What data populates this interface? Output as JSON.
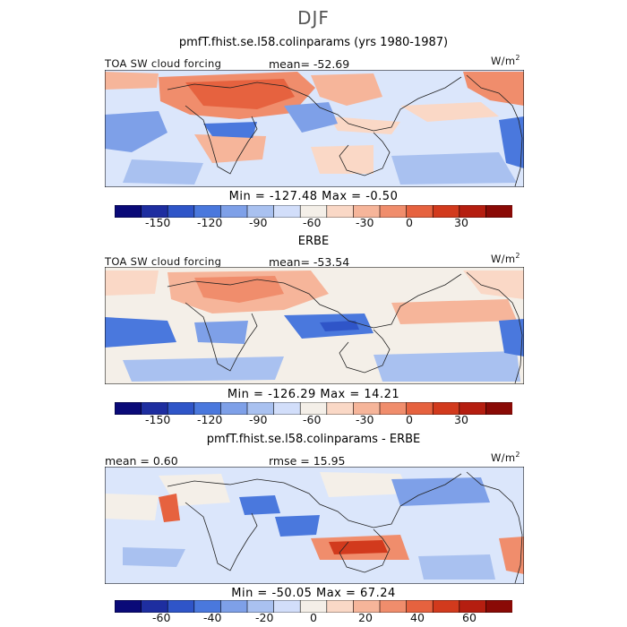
{
  "title": "DJF",
  "panels": [
    {
      "header": "pmfT.fhist.se.l58.colinparams (yrs 1980-1987)",
      "left_label": "TOA SW cloud forcing",
      "center_label": "mean=  -52.69",
      "units": "W/m",
      "units_sup": "2",
      "minmax": "Min = -127.48  Max =   -0.50",
      "colorbar_ticks": [
        "-150",
        "-120",
        "-90",
        "-60",
        "-30",
        "0",
        "30"
      ]
    },
    {
      "header": "ERBE",
      "left_label": "TOA SW cloud forcing",
      "center_label": "mean=  -53.54",
      "units": "W/m",
      "units_sup": "2",
      "minmax": "Min = -126.29  Max =   14.21",
      "colorbar_ticks": [
        "-150",
        "-120",
        "-90",
        "-60",
        "-30",
        "0",
        "30"
      ]
    },
    {
      "header": "pmfT.fhist.se.l58.colinparams - ERBE",
      "left_label": "mean =   0.60",
      "center_label": "rmse =   15.95",
      "units": "W/m",
      "units_sup": "2",
      "minmax": "Min = -50.05  Max =   67.24",
      "colorbar_ticks": [
        "-60",
        "-40",
        "-20",
        "0",
        "20",
        "40",
        "60"
      ]
    }
  ],
  "colorbar_colors": [
    "#0a0a78",
    "#1e2ea0",
    "#2f55c8",
    "#4a78dd",
    "#7ea0e8",
    "#a9c1f0",
    "#d2defa",
    "#f4efe8",
    "#fad8c6",
    "#f6b59a",
    "#f08d6c",
    "#e6623f",
    "#d23a1d",
    "#b51e10",
    "#8a0a06"
  ],
  "colors": {
    "map_background": "#dbe6fb",
    "coastline": "#222222"
  }
}
